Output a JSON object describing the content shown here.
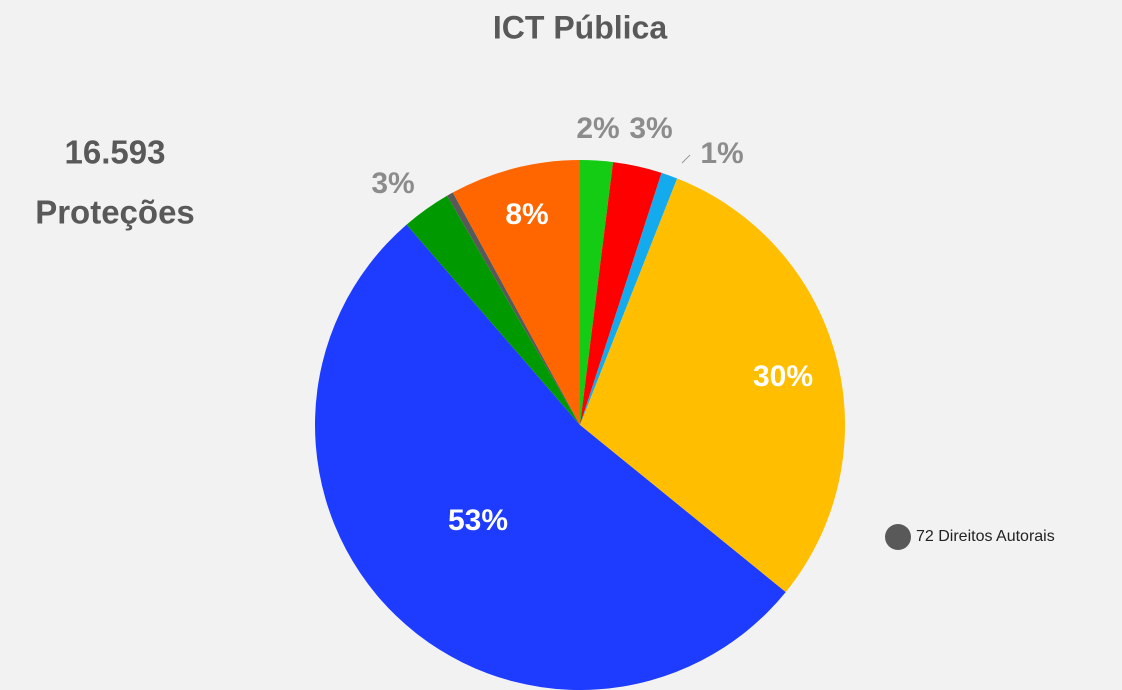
{
  "chart_data": {
    "type": "pie",
    "title": "ICT Pública",
    "subtitle": [
      "16.593",
      "Proteções"
    ],
    "values": [
      2,
      3,
      1,
      30,
      53,
      3,
      0.4,
      8
    ],
    "value_labels": [
      "2%",
      "3%",
      "1%",
      "30%",
      "53%",
      "3%",
      null,
      "8%"
    ],
    "colors": [
      "#14cc14",
      "#ff0000",
      "#14aaee",
      "#ffbf00",
      "#1e3cff",
      "#009a00",
      "#595959",
      "#ff6600"
    ],
    "annotation": "72 Direitos Autorais"
  }
}
